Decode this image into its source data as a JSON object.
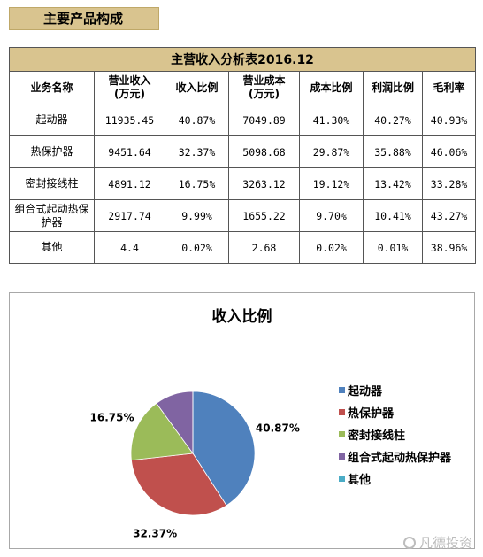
{
  "section_title": "主要产品构成",
  "table": {
    "title": "主营收入分析表2016.12",
    "headers": [
      "业务名称",
      "营业收入\n(万元)",
      "收入比例",
      "营业成本\n(万元)",
      "成本比例",
      "利润比例",
      "毛利率"
    ],
    "rows": [
      [
        "起动器",
        "11935.45",
        "40.87%",
        "7049.89",
        "41.30%",
        "40.27%",
        "40.93%"
      ],
      [
        "热保护器",
        "9451.64",
        "32.37%",
        "5098.68",
        "29.87%",
        "35.88%",
        "46.06%"
      ],
      [
        "密封接线柱",
        "4891.12",
        "16.75%",
        "3263.12",
        "19.12%",
        "13.42%",
        "33.28%"
      ],
      [
        "组合式起动热保护器",
        "2917.74",
        "9.99%",
        "1655.22",
        "9.70%",
        "10.41%",
        "43.27%"
      ],
      [
        "其他",
        "4.4",
        "0.02%",
        "2.68",
        "0.02%",
        "0.01%",
        "38.96%"
      ]
    ]
  },
  "chart_data": {
    "type": "pie",
    "title": "收入比例",
    "categories": [
      "起动器",
      "热保护器",
      "密封接线柱",
      "组合式起动热保护器",
      "其他"
    ],
    "values": [
      40.87,
      32.37,
      16.75,
      9.99,
      0.02
    ],
    "data_labels": [
      "40.87%",
      "32.37%",
      "16.75%",
      "",
      ""
    ],
    "colors": [
      "#4f81bd",
      "#c0504d",
      "#9bbb59",
      "#8064a2",
      "#4bacc6"
    ],
    "legend_position": "right"
  },
  "watermark": "凡德投资"
}
